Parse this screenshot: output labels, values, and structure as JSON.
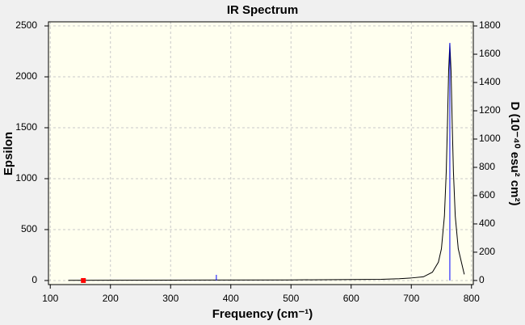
{
  "chart_data": {
    "type": "line",
    "title": "IR Spectrum",
    "x_label": "Frequency (cm⁻¹)",
    "y_label": "Epsilon",
    "y2_label": "D (10⁻⁴⁰ esu² cm²)",
    "xlim": [
      97,
      803
    ],
    "ylim": [
      -40,
      2540
    ],
    "y2lim": [
      -29,
      1829
    ],
    "xticks": [
      100,
      200,
      300,
      400,
      500,
      600,
      700,
      800
    ],
    "yticks": [
      0,
      500,
      1000,
      1500,
      2000,
      2500
    ],
    "y2ticks": [
      0,
      200,
      400,
      600,
      800,
      1000,
      1200,
      1400,
      1600,
      1800
    ],
    "grid": true,
    "series": [
      {
        "color": "#000000",
        "style": "line",
        "x": [
          130,
          300,
          500,
          650,
          680,
          700,
          720,
          735,
          745,
          750,
          755,
          758,
          760,
          762,
          764,
          766,
          768,
          770,
          773,
          778,
          788
        ],
        "values": [
          2,
          4,
          6,
          12,
          18,
          25,
          36,
          81,
          180,
          311,
          633,
          1064,
          1524,
          2060,
          2330,
          2060,
          1524,
          1064,
          633,
          311,
          60
        ]
      },
      {
        "color": "#0000ff",
        "style": "stick",
        "axis": "y2",
        "x": [
          376,
          764
        ],
        "values": [
          40,
          1680
        ]
      },
      {
        "color": "#ff0000",
        "style": "marker",
        "x": [
          155
        ],
        "values": [
          0
        ]
      }
    ]
  }
}
